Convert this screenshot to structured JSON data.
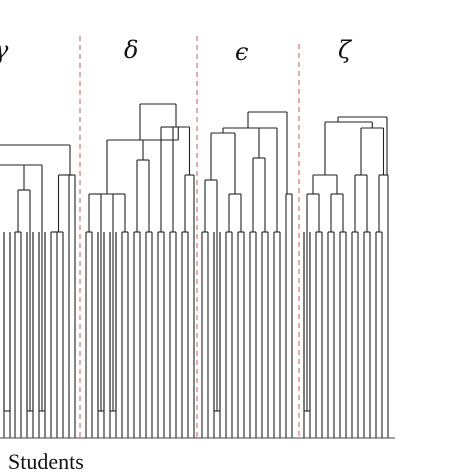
{
  "figure": {
    "cluster_labels": [
      "γ",
      "δ",
      "ϵ",
      "ζ"
    ],
    "axis_label": "Students",
    "colors": {
      "branch": "#222222",
      "separator": "#d9534f",
      "text": "#111111",
      "background": "#ffffff"
    }
  }
}
